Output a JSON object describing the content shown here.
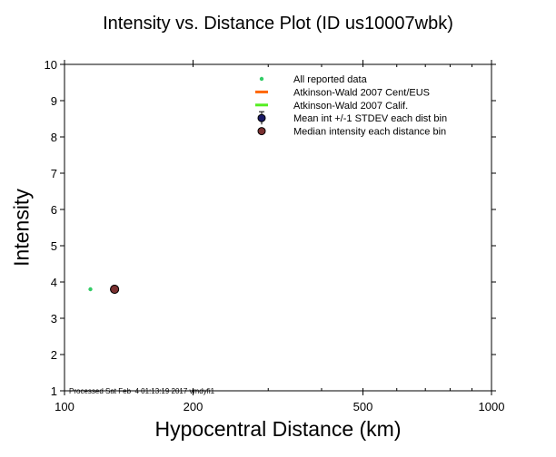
{
  "chart_data": {
    "type": "scatter",
    "title": "Intensity vs. Distance Plot (ID us10007wbk)",
    "xlabel": "Hypocentral Distance (km)",
    "ylabel": "Intensity",
    "x_scale": "log",
    "xlim": [
      100,
      1000
    ],
    "ylim": [
      1,
      10
    ],
    "x_ticks": [
      100,
      200,
      500,
      1000
    ],
    "y_ticks": [
      1,
      2,
      3,
      4,
      5,
      6,
      7,
      8,
      9,
      10
    ],
    "grid": false,
    "legend_position": "top-right",
    "series": [
      {
        "name": "All reported data",
        "kind": "points",
        "color": "#33cc66",
        "points": [
          [
            115,
            3.8
          ]
        ]
      },
      {
        "name": "Atkinson-Wald 2007 Cent/EUS",
        "kind": "line",
        "color": "#ff6600",
        "points": []
      },
      {
        "name": "Atkinson-Wald 2007 Calif.",
        "kind": "line",
        "color": "#55ee22",
        "points": []
      },
      {
        "name": "Mean int +/-1 STDEV each dist bin",
        "kind": "errorbar",
        "color": "#1a1a66",
        "points": [
          [
            131,
            3.8
          ]
        ]
      },
      {
        "name": "Median intensity each distance bin",
        "kind": "points",
        "color": "#7a3030",
        "points": [
          [
            131,
            3.8
          ]
        ]
      }
    ],
    "footer": "Processed Sat Feb  4 01:13:19 2017 vmdyfi1"
  }
}
